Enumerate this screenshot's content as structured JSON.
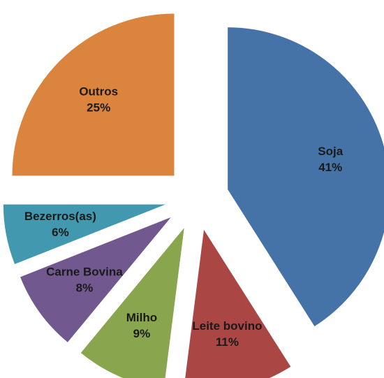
{
  "chart_data": {
    "type": "pie",
    "categories": [
      "Soja",
      "Leite bovino",
      "Milho",
      "Carne Bovina",
      "Bezerros(as)",
      "Outros"
    ],
    "values": [
      41,
      11,
      9,
      8,
      6,
      25
    ],
    "value_labels": [
      "41%",
      "11%",
      "9%",
      "8%",
      "6%",
      "25%"
    ],
    "colors": [
      "#4572a7",
      "#aa4643",
      "#89a54e",
      "#71588f",
      "#4198af",
      "#db843d"
    ],
    "exploded": true
  }
}
